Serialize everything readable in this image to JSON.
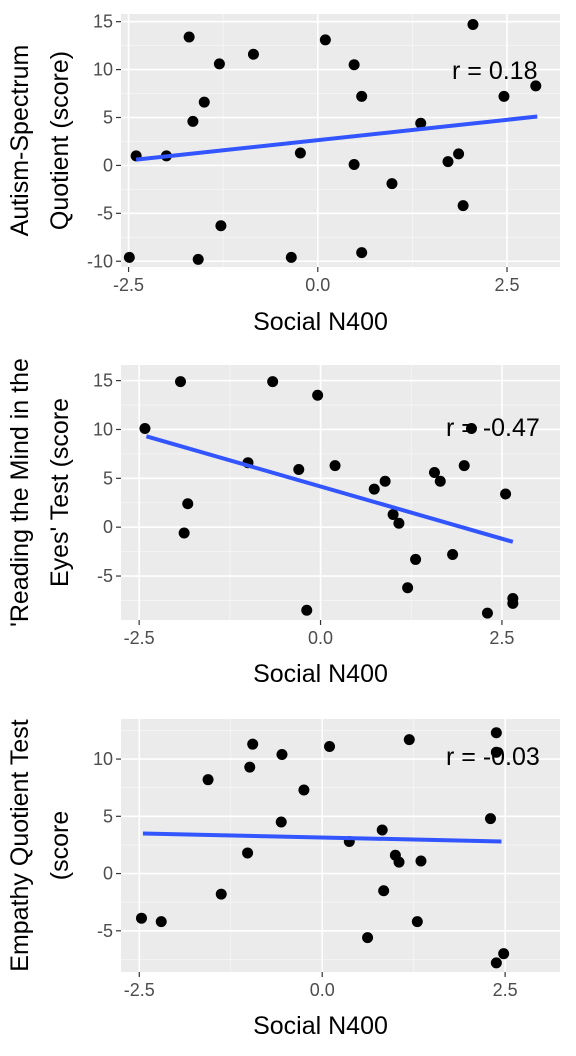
{
  "chart_data": [
    {
      "type": "scatter",
      "xlabel": "Social N400",
      "ylabel": [
        "Autism-Spectrum",
        "Quotient (score)"
      ],
      "xlim": [
        -2.6,
        3.2
      ],
      "ylim": [
        -10.6,
        15.8
      ],
      "xticks": [
        -2.5,
        0.0,
        2.5
      ],
      "xtick_labels": [
        "-2.5",
        "0.0",
        "2.5"
      ],
      "yticks": [
        -10,
        -5,
        0,
        5,
        10,
        15
      ],
      "ytick_labels": [
        "-10",
        "-5",
        "0",
        "5",
        "10",
        "15"
      ],
      "grid": true,
      "annotation": "r =  0.18",
      "fit_line": {
        "x": [
          -2.4,
          2.9
        ],
        "y": [
          0.6,
          5.1
        ]
      },
      "points": [
        {
          "x": -2.49,
          "y": -9.6
        },
        {
          "x": -2.4,
          "y": 1.0
        },
        {
          "x": -2.0,
          "y": 1.0
        },
        {
          "x": -1.7,
          "y": 13.4
        },
        {
          "x": -1.65,
          "y": 4.6
        },
        {
          "x": -1.5,
          "y": 6.6
        },
        {
          "x": -1.58,
          "y": -9.8
        },
        {
          "x": -1.3,
          "y": 10.6
        },
        {
          "x": -1.28,
          "y": -6.3
        },
        {
          "x": -0.85,
          "y": 11.6
        },
        {
          "x": -0.35,
          "y": -9.6
        },
        {
          "x": -0.23,
          "y": 1.3
        },
        {
          "x": 0.1,
          "y": 13.1
        },
        {
          "x": 0.48,
          "y": 10.5
        },
        {
          "x": 0.48,
          "y": 0.1
        },
        {
          "x": 0.58,
          "y": 7.2
        },
        {
          "x": 0.58,
          "y": -9.1
        },
        {
          "x": 0.98,
          "y": -1.9
        },
        {
          "x": 1.36,
          "y": 4.4
        },
        {
          "x": 1.72,
          "y": 0.4
        },
        {
          "x": 1.86,
          "y": 1.2
        },
        {
          "x": 2.05,
          "y": 14.7
        },
        {
          "x": 1.92,
          "y": -4.2
        },
        {
          "x": 2.46,
          "y": 7.2
        },
        {
          "x": 2.88,
          "y": 8.3
        }
      ]
    },
    {
      "type": "scatter",
      "xlabel": "Social N400",
      "ylabel": [
        "'Reading the Mind in the",
        "Eyes' Test (score"
      ],
      "xlim": [
        -2.75,
        3.3
      ],
      "ylim": [
        -9.5,
        16.6
      ],
      "xticks": [
        -2.5,
        0.0,
        2.5
      ],
      "xtick_labels": [
        "-2.5",
        "0.0",
        "2.5"
      ],
      "yticks": [
        -5,
        0,
        5,
        10,
        15
      ],
      "ytick_labels": [
        "-5",
        "0",
        "5",
        "10",
        "15"
      ],
      "grid": true,
      "annotation": "r =  -0.47",
      "fit_line": {
        "x": [
          -2.4,
          2.65
        ],
        "y": [
          9.3,
          -1.5
        ]
      },
      "points": [
        {
          "x": -2.42,
          "y": 10.1
        },
        {
          "x": -1.93,
          "y": 14.9
        },
        {
          "x": -1.88,
          "y": -0.6
        },
        {
          "x": -1.83,
          "y": 2.4
        },
        {
          "x": -0.66,
          "y": 14.9
        },
        {
          "x": -0.04,
          "y": 13.5
        },
        {
          "x": -1.0,
          "y": 6.6
        },
        {
          "x": -0.3,
          "y": 5.9
        },
        {
          "x": -0.19,
          "y": -8.5
        },
        {
          "x": 0.2,
          "y": 6.3
        },
        {
          "x": 0.74,
          "y": 3.9
        },
        {
          "x": 0.89,
          "y": 4.7
        },
        {
          "x": 1.0,
          "y": 1.3
        },
        {
          "x": 1.08,
          "y": 0.4
        },
        {
          "x": 1.2,
          "y": -6.2
        },
        {
          "x": 1.31,
          "y": -3.3
        },
        {
          "x": 1.57,
          "y": 5.6
        },
        {
          "x": 1.65,
          "y": 4.7
        },
        {
          "x": 1.82,
          "y": -2.8
        },
        {
          "x": 1.98,
          "y": 6.3
        },
        {
          "x": 2.08,
          "y": 10.1
        },
        {
          "x": 2.3,
          "y": -8.8
        },
        {
          "x": 2.55,
          "y": 3.4
        },
        {
          "x": 2.65,
          "y": -7.3
        },
        {
          "x": 2.65,
          "y": -7.8
        }
      ]
    },
    {
      "type": "scatter",
      "xlabel": "Social N400",
      "ylabel": [
        "Empathy Quotient Test",
        "(score"
      ],
      "xlim": [
        -2.75,
        3.25
      ],
      "ylim": [
        -8.6,
        13.5
      ],
      "xticks": [
        -2.5,
        0.0,
        2.5
      ],
      "xtick_labels": [
        "-2.5",
        "0.0",
        "2.5"
      ],
      "yticks": [
        -5,
        0,
        5,
        10
      ],
      "ytick_labels": [
        "-5",
        "0",
        "5",
        "10"
      ],
      "grid": true,
      "annotation": "r =  -0.03",
      "fit_line": {
        "x": [
          -2.45,
          2.45
        ],
        "y": [
          3.5,
          2.8
        ]
      },
      "points": [
        {
          "x": -2.47,
          "y": -3.9
        },
        {
          "x": -2.2,
          "y": -4.2
        },
        {
          "x": -1.56,
          "y": 8.2
        },
        {
          "x": -1.38,
          "y": -1.8
        },
        {
          "x": -0.99,
          "y": 9.3
        },
        {
          "x": -0.95,
          "y": 11.3
        },
        {
          "x": -1.02,
          "y": 1.8
        },
        {
          "x": -0.55,
          "y": 10.4
        },
        {
          "x": -0.56,
          "y": 4.5
        },
        {
          "x": -0.25,
          "y": 7.3
        },
        {
          "x": 0.1,
          "y": 11.1
        },
        {
          "x": 0.37,
          "y": 2.8
        },
        {
          "x": 0.62,
          "y": -5.6
        },
        {
          "x": 0.82,
          "y": 3.8
        },
        {
          "x": 0.84,
          "y": -1.5
        },
        {
          "x": 1.0,
          "y": 1.6
        },
        {
          "x": 1.05,
          "y": 1.0
        },
        {
          "x": 1.19,
          "y": 11.7
        },
        {
          "x": 1.3,
          "y": -4.2
        },
        {
          "x": 1.35,
          "y": 1.1
        },
        {
          "x": 2.3,
          "y": 4.8
        },
        {
          "x": 2.38,
          "y": 12.3
        },
        {
          "x": 2.38,
          "y": 10.6
        },
        {
          "x": 2.38,
          "y": -7.8
        },
        {
          "x": 2.48,
          "y": -7.0
        }
      ]
    }
  ],
  "colors": {
    "panel_bg": "#ebebeb",
    "grid_major": "#ffffff",
    "grid_minor": "#f5f5f5",
    "point": "#000000",
    "fit_line": "#3355ff",
    "tick_text": "#4d4d4d",
    "title_text": "#000000"
  }
}
